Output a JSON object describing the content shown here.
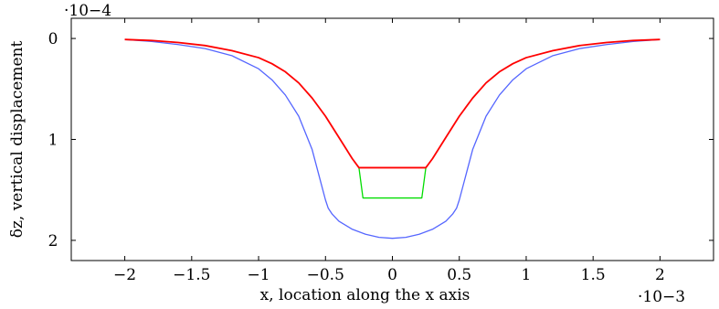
{
  "chart_data": {
    "type": "line",
    "xlabel": "x, location along the x axis",
    "ylabel": "δz, vertical displacement",
    "x_multiplier": "·10−3",
    "y_multiplier": "·10−4",
    "xlim": [
      -2.4,
      2.4
    ],
    "ylim": [
      2.2,
      -0.2
    ],
    "y_axis_inverted": true,
    "grid": false,
    "legend": "none",
    "x_ticks": [
      -2,
      -1.5,
      -1,
      -0.5,
      0,
      0.5,
      1,
      1.5,
      2
    ],
    "x_tick_labels": [
      "−2",
      "−1.5",
      "−1",
      "−0.5",
      "0",
      "0.5",
      "1",
      "1.5",
      "2"
    ],
    "y_ticks": [
      0,
      1,
      2
    ],
    "y_tick_labels": [
      "0",
      "1",
      "2"
    ],
    "series": [
      {
        "color": "#5566ff",
        "x": [
          -2,
          -1.8,
          -1.6,
          -1.4,
          -1.2,
          -1.0,
          -0.9,
          -0.8,
          -0.7,
          -0.6,
          -0.55,
          -0.5,
          -0.48,
          -0.45,
          -0.4,
          -0.3,
          -0.2,
          -0.1,
          0,
          0.1,
          0.2,
          0.3,
          0.4,
          0.45,
          0.48,
          0.5,
          0.55,
          0.6,
          0.7,
          0.8,
          0.9,
          1.0,
          1.2,
          1.4,
          1.6,
          1.8,
          2
        ],
        "y": [
          0.01,
          0.03,
          0.06,
          0.1,
          0.17,
          0.3,
          0.41,
          0.56,
          0.77,
          1.1,
          1.35,
          1.6,
          1.68,
          1.74,
          1.81,
          1.89,
          1.94,
          1.97,
          1.98,
          1.97,
          1.94,
          1.89,
          1.81,
          1.74,
          1.68,
          1.6,
          1.35,
          1.1,
          0.77,
          0.56,
          0.41,
          0.3,
          0.17,
          0.1,
          0.06,
          0.03,
          0.01
        ]
      },
      {
        "color": "#00dd00",
        "x": [
          -0.25,
          -0.22,
          0.22,
          0.25
        ],
        "y": [
          1.28,
          1.58,
          1.58,
          1.28
        ]
      },
      {
        "color": "#ff0000",
        "x": [
          -2,
          -1.8,
          -1.6,
          -1.4,
          -1.2,
          -1.0,
          -0.9,
          -0.8,
          -0.7,
          -0.6,
          -0.5,
          -0.4,
          -0.3,
          -0.25,
          0.25,
          0.3,
          0.4,
          0.5,
          0.6,
          0.7,
          0.8,
          0.9,
          1.0,
          1.2,
          1.4,
          1.6,
          1.8,
          2
        ],
        "y": [
          0.01,
          0.02,
          0.04,
          0.07,
          0.12,
          0.19,
          0.25,
          0.33,
          0.44,
          0.59,
          0.77,
          0.98,
          1.19,
          1.28,
          1.28,
          1.19,
          0.98,
          0.77,
          0.59,
          0.44,
          0.33,
          0.25,
          0.19,
          0.12,
          0.07,
          0.04,
          0.02,
          0.01
        ]
      }
    ]
  }
}
